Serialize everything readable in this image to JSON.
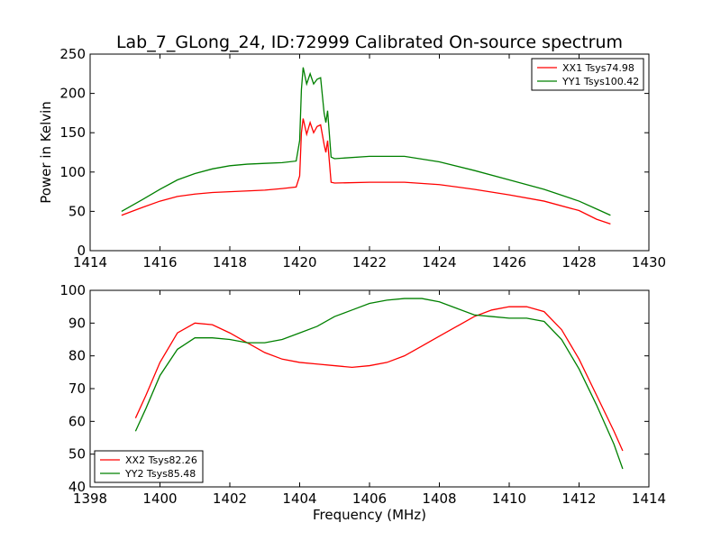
{
  "title": "Lab_7_GLong_24, ID:72999 Calibrated On-source spectrum",
  "colors": {
    "red": "#ff0000",
    "green": "#008000",
    "frame": "#000000"
  },
  "chart_data": [
    {
      "type": "line",
      "title": "Lab_7_GLong_24, ID:72999 Calibrated On-source spectrum",
      "xlabel": "",
      "ylabel": "Power in Kelvin",
      "xlim": [
        1414,
        1430
      ],
      "ylim": [
        0,
        250
      ],
      "xticks": [
        1414,
        1416,
        1418,
        1420,
        1422,
        1424,
        1426,
        1428,
        1430
      ],
      "yticks": [
        0,
        50,
        100,
        150,
        200,
        250
      ],
      "grid": false,
      "legend": "top-right",
      "series": [
        {
          "name": "XX1 Tsys74.98",
          "color": "#ff0000",
          "x": [
            1414.9,
            1415.5,
            1416.0,
            1416.5,
            1417.0,
            1417.5,
            1418.0,
            1418.5,
            1419.0,
            1419.5,
            1419.9,
            1420.0,
            1420.05,
            1420.1,
            1420.2,
            1420.3,
            1420.4,
            1420.5,
            1420.6,
            1420.7,
            1420.75,
            1420.8,
            1420.9,
            1421.0,
            1422.0,
            1423.0,
            1424.0,
            1425.0,
            1426.0,
            1427.0,
            1428.0,
            1428.5,
            1428.9
          ],
          "y": [
            45,
            55,
            63,
            69,
            72,
            74,
            75,
            76,
            77,
            79,
            81,
            95,
            150,
            168,
            148,
            163,
            150,
            158,
            160,
            135,
            125,
            140,
            87,
            86,
            87,
            87,
            84,
            78,
            71,
            63,
            51,
            40,
            34
          ]
        },
        {
          "name": "YY1 Tsys100.42",
          "color": "#008000",
          "x": [
            1414.9,
            1415.5,
            1416.0,
            1416.5,
            1417.0,
            1417.5,
            1418.0,
            1418.5,
            1419.0,
            1419.5,
            1419.9,
            1420.0,
            1420.05,
            1420.1,
            1420.2,
            1420.3,
            1420.4,
            1420.5,
            1420.6,
            1420.7,
            1420.75,
            1420.8,
            1420.9,
            1421.0,
            1422.0,
            1423.0,
            1424.0,
            1425.0,
            1426.0,
            1427.0,
            1428.0,
            1428.5,
            1428.9
          ],
          "y": [
            50,
            65,
            78,
            90,
            98,
            104,
            108,
            110,
            111,
            112,
            114,
            140,
            205,
            233,
            212,
            225,
            212,
            218,
            220,
            175,
            163,
            178,
            119,
            117,
            120,
            120,
            113,
            102,
            90,
            78,
            63,
            53,
            45
          ]
        }
      ]
    },
    {
      "type": "line",
      "title": "",
      "xlabel": "Frequency (MHz)",
      "ylabel": "",
      "xlim": [
        1398,
        1414
      ],
      "ylim": [
        40,
        100
      ],
      "xticks": [
        1398,
        1400,
        1402,
        1404,
        1406,
        1408,
        1410,
        1412,
        1414
      ],
      "yticks": [
        40,
        50,
        60,
        70,
        80,
        90,
        100
      ],
      "grid": false,
      "legend": "bottom-left",
      "series": [
        {
          "name": "XX2 Tsys82.26",
          "color": "#ff0000",
          "x": [
            1399.3,
            1399.6,
            1400.0,
            1400.5,
            1401.0,
            1401.5,
            1402.0,
            1402.5,
            1403.0,
            1403.5,
            1404.0,
            1404.5,
            1405.0,
            1405.5,
            1406.0,
            1406.5,
            1407.0,
            1407.5,
            1408.0,
            1408.5,
            1409.0,
            1409.5,
            1410.0,
            1410.5,
            1411.0,
            1411.5,
            1412.0,
            1412.5,
            1413.0,
            1413.25
          ],
          "y": [
            61,
            68,
            78,
            87,
            90,
            89.5,
            87,
            84,
            81,
            79,
            78,
            77.5,
            77,
            76.5,
            77,
            78,
            80,
            83,
            86,
            89,
            92,
            94,
            95,
            95,
            93.5,
            88,
            79,
            68,
            57,
            51
          ]
        },
        {
          "name": "YY2 Tsys85.48",
          "color": "#008000",
          "x": [
            1399.3,
            1399.6,
            1400.0,
            1400.5,
            1401.0,
            1401.5,
            1402.0,
            1402.5,
            1403.0,
            1403.5,
            1404.0,
            1404.5,
            1405.0,
            1405.5,
            1406.0,
            1406.5,
            1407.0,
            1407.5,
            1408.0,
            1408.5,
            1409.0,
            1409.5,
            1410.0,
            1410.5,
            1411.0,
            1411.5,
            1412.0,
            1412.5,
            1413.0,
            1413.25
          ],
          "y": [
            57,
            64,
            74,
            82,
            85.5,
            85.5,
            85,
            84,
            84,
            85,
            87,
            89,
            92,
            94,
            96,
            97,
            97.5,
            97.5,
            96.5,
            94.5,
            92.5,
            92,
            91.5,
            91.5,
            90.5,
            85,
            76,
            65,
            53,
            45.5
          ]
        }
      ]
    }
  ]
}
